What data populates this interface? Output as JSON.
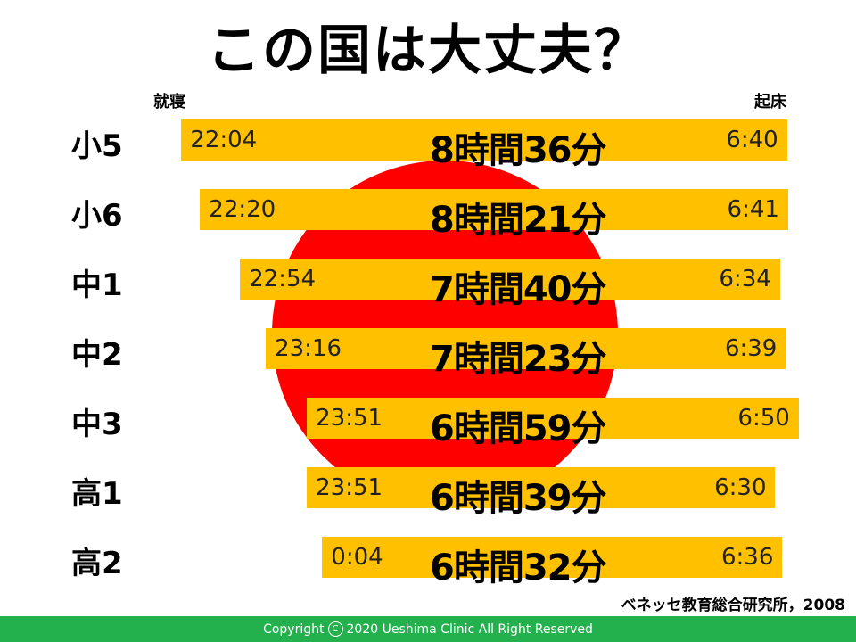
{
  "title": "この国は大丈夫？",
  "label_bedtime": "就寝",
  "label_waketime": "起床",
  "source": "ベネッセ教育総合研究所，2008",
  "footer": {
    "prefix": "Copyright",
    "icon": "copyright-icon",
    "symbol": "C",
    "text": "2020 Ueshima Clinic All Right Reserved"
  },
  "colors": {
    "bar": "#ffc000",
    "sun": "#ff0000",
    "footer": "#22b14c"
  },
  "chart_data": {
    "type": "bar",
    "categories": [
      "小5",
      "小6",
      "中1",
      "中2",
      "中3",
      "高1",
      "高2"
    ],
    "bedtime": [
      "22:04",
      "22:20",
      "22:54",
      "23:16",
      "23:51",
      "23:51",
      "0:04"
    ],
    "waketime": [
      "6:40",
      "6:41",
      "6:34",
      "6:39",
      "6:50",
      "6:30",
      "6:36"
    ],
    "duration_labels": [
      "8時間36分",
      "8時間21分",
      "7時間40分",
      "7時間23分",
      "6時間59分",
      "6時間39分",
      "6時間32分"
    ],
    "start_hours": [
      22.067,
      22.333,
      22.9,
      23.267,
      23.85,
      23.85,
      24.067
    ],
    "end_hours": [
      30.667,
      30.683,
      30.567,
      30.65,
      30.833,
      30.5,
      30.6
    ]
  }
}
